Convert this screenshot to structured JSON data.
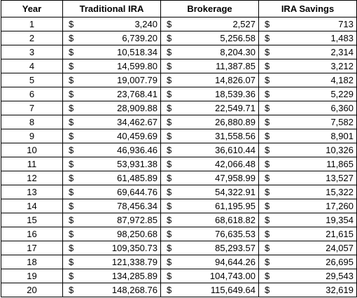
{
  "table": {
    "header": [
      "Year",
      "Traditional IRA",
      "Brokerage",
      "IRA Savings"
    ],
    "currency": "$",
    "rows": [
      [
        "1",
        "3,240",
        "2,527",
        "713"
      ],
      [
        "2",
        "6,739.20",
        "5,256.58",
        "1,483"
      ],
      [
        "3",
        "10,518.34",
        "8,204.30",
        "2,314"
      ],
      [
        "4",
        "14,599.80",
        "11,387.85",
        "3,212"
      ],
      [
        "5",
        "19,007.79",
        "14,826.07",
        "4,182"
      ],
      [
        "6",
        "23,768.41",
        "18,539.36",
        "5,229"
      ],
      [
        "7",
        "28,909.88",
        "22,549.71",
        "6,360"
      ],
      [
        "8",
        "34,462.67",
        "26,880.89",
        "7,582"
      ],
      [
        "9",
        "40,459.69",
        "31,558.56",
        "8,901"
      ],
      [
        "10",
        "46,936.46",
        "36,610.44",
        "10,326"
      ],
      [
        "11",
        "53,931.38",
        "42,066.48",
        "11,865"
      ],
      [
        "12",
        "61,485.89",
        "47,958.99",
        "13,527"
      ],
      [
        "13",
        "69,644.76",
        "54,322.91",
        "15,322"
      ],
      [
        "14",
        "78,456.34",
        "61,195.95",
        "17,260"
      ],
      [
        "15",
        "87,972.85",
        "68,618.82",
        "19,354"
      ],
      [
        "16",
        "98,250.68",
        "76,635.53",
        "21,615"
      ],
      [
        "17",
        "109,350.73",
        "85,293.57",
        "24,057"
      ],
      [
        "18",
        "121,338.79",
        "94,644.26",
        "26,695"
      ],
      [
        "19",
        "134,285.89",
        "104,743.00",
        "29,543"
      ],
      [
        "20",
        "148,268.76",
        "115,649.64",
        "32,619"
      ]
    ]
  }
}
